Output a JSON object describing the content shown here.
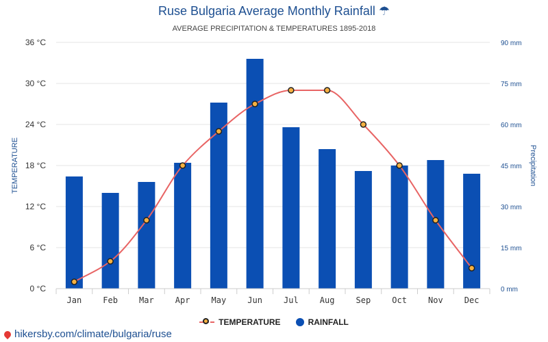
{
  "header": {
    "title": "Ruse Bulgaria Average Monthly Rainfall",
    "umbrella_glyph": "☂",
    "subtitle": "AVERAGE PRECIPITATION & TEMPERATURES 1895-2018"
  },
  "legend": {
    "temperature": "TEMPERATURE",
    "rainfall": "RAINFALL"
  },
  "source": {
    "text": "hikersby.com/climate/bulgaria/ruse",
    "icon": "map-pin-icon"
  },
  "colors": {
    "title": "#1d4f91",
    "bar": "#0b4fb3",
    "line": "#e86464",
    "marker_fill": "#f5b041",
    "marker_stroke": "#222222",
    "grid": "#e6e6e6"
  },
  "chart_data": {
    "type": "bar+line",
    "categories": [
      "Jan",
      "Feb",
      "Mar",
      "Apr",
      "May",
      "Jun",
      "Jul",
      "Aug",
      "Sep",
      "Oct",
      "Nov",
      "Dec"
    ],
    "series": [
      {
        "name": "RAINFALL",
        "type": "bar",
        "axis": "right",
        "values": [
          41,
          35,
          39,
          46,
          68,
          84,
          59,
          51,
          43,
          45,
          47,
          42
        ]
      },
      {
        "name": "TEMPERATURE",
        "type": "line",
        "axis": "left",
        "values": [
          1,
          4,
          10,
          18,
          23,
          27,
          29,
          29,
          24,
          18,
          10,
          3
        ]
      }
    ],
    "ylabel_left": "TEMPERATURE",
    "ylabel_right": "Precipitation",
    "ylim_left": [
      0,
      36
    ],
    "ylim_right": [
      0,
      90
    ],
    "yticks_left": [
      "0 °C",
      "6 °C",
      "12 °C",
      "18 °C",
      "24 °C",
      "30 °C",
      "36 °C"
    ],
    "yticks_right": [
      "0 mm",
      "15 mm",
      "30 mm",
      "45 mm",
      "60 mm",
      "75 mm",
      "90 mm"
    ],
    "grid": true,
    "legend_position": "bottom-center"
  }
}
